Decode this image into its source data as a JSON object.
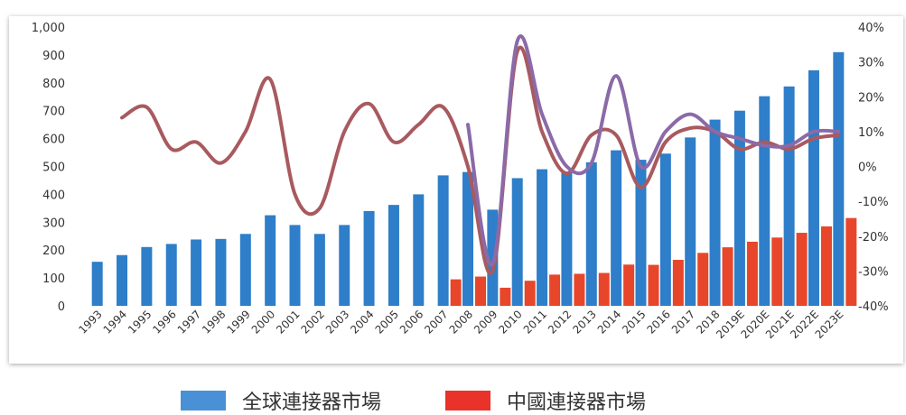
{
  "chart_data": {
    "type": "bar",
    "categories": [
      "1993",
      "1994",
      "1995",
      "1996",
      "1997",
      "1998",
      "1999",
      "2000",
      "2001",
      "2002",
      "2003",
      "2004",
      "2005",
      "2006",
      "2007",
      "2008",
      "2009",
      "2010",
      "2011",
      "2012",
      "2013",
      "2014",
      "2015",
      "2016",
      "2017",
      "2018",
      "2019E",
      "2020E",
      "2021E",
      "2022E",
      "2023E"
    ],
    "series": [
      {
        "name": "全球連接器市場",
        "kind": "bar",
        "axis": "left",
        "color": "#2e7ec9",
        "values": [
          158,
          182,
          211,
          222,
          238,
          240,
          258,
          325,
          290,
          258,
          290,
          340,
          362,
          400,
          468,
          480,
          345,
          458,
          490,
          480,
          515,
          558,
          524,
          546,
          604,
          668,
          700,
          752,
          787,
          845,
          910
        ]
      },
      {
        "name": "中國連接器市場",
        "kind": "bar",
        "axis": "left",
        "color": "#e8462a",
        "values": [
          null,
          null,
          null,
          null,
          null,
          null,
          null,
          null,
          null,
          null,
          null,
          null,
          null,
          null,
          95,
          105,
          65,
          90,
          112,
          115,
          118,
          148,
          147,
          165,
          190,
          210,
          230,
          245,
          262,
          285,
          315
        ]
      },
      {
        "kind": "line",
        "axis": "right",
        "color": "#a85a5f",
        "values": [
          null,
          14,
          17,
          5,
          7,
          1,
          10,
          25,
          -8,
          -12,
          10,
          18,
          7,
          12,
          17,
          0,
          -30,
          33,
          10,
          -2,
          9,
          9,
          -6,
          7,
          11,
          10,
          5,
          7,
          5,
          8,
          9
        ]
      },
      {
        "kind": "line",
        "axis": "right",
        "color": "#8b6aa8",
        "values": [
          null,
          null,
          null,
          null,
          null,
          null,
          null,
          null,
          null,
          null,
          null,
          null,
          null,
          null,
          null,
          12,
          -28,
          36,
          15,
          0,
          1,
          26,
          0,
          10,
          15,
          10,
          8,
          6,
          6,
          10,
          10
        ]
      }
    ],
    "ylim_left": [
      0,
      1000
    ],
    "yticks_left": [
      "0",
      "100",
      "200",
      "300",
      "400",
      "500",
      "600",
      "700",
      "800",
      "900",
      "1,000"
    ],
    "ylim_right": [
      -40,
      40
    ],
    "yticks_right": [
      "-40%",
      "-30%",
      "-20%",
      "-10%",
      "0%",
      "10%",
      "20%",
      "30%",
      "40%"
    ],
    "grid": false,
    "legend_position": "bottom-center"
  },
  "legend": [
    {
      "label": "全球連接器市場",
      "color": "#4a90d6"
    },
    {
      "label": "中國連接器市場",
      "color": "#e8322a"
    }
  ]
}
